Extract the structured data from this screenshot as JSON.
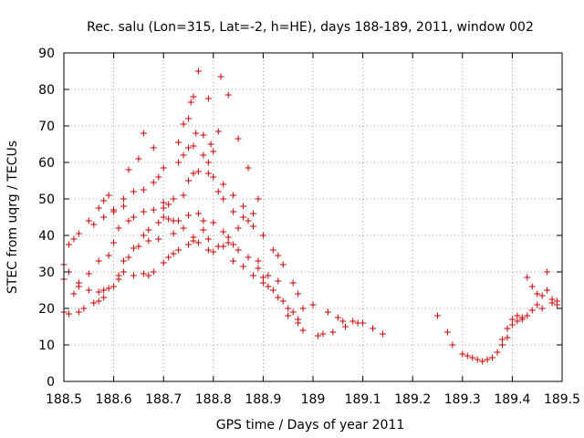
{
  "chart_data": {
    "type": "scatter",
    "title": "Rec. salu (Lon=315, Lat=-2, h=HE), days 188-189, 2011, window 002",
    "xlabel": "GPS time / Days of year 2011",
    "ylabel": "STEC from uqrg / TECUs",
    "xlim": [
      188.5,
      189.5
    ],
    "ylim": [
      0,
      90
    ],
    "xticks": [
      "188.5",
      "188.6",
      "188.7",
      "188.8",
      "188.9",
      "189",
      "189.1",
      "189.2",
      "189.3",
      "189.4",
      "189.5"
    ],
    "yticks": [
      "0",
      "10",
      "20",
      "30",
      "40",
      "50",
      "60",
      "70",
      "80",
      "90"
    ],
    "grid": true,
    "marker": "+",
    "color": "#cc0000",
    "points": [
      [
        188.5,
        32.0
      ],
      [
        188.51,
        37.5
      ],
      [
        188.52,
        39.0
      ],
      [
        188.53,
        40.5
      ],
      [
        188.55,
        44.0
      ],
      [
        188.57,
        47.5
      ],
      [
        188.58,
        49.5
      ],
      [
        188.59,
        51.0
      ],
      [
        188.6,
        47.0
      ],
      [
        188.62,
        50.0
      ],
      [
        188.64,
        52.0
      ],
      [
        188.66,
        52.5
      ],
      [
        188.68,
        54.5
      ],
      [
        188.69,
        56.0
      ],
      [
        188.7,
        58.5
      ],
      [
        188.73,
        60.0
      ],
      [
        188.74,
        62.0
      ],
      [
        188.75,
        64.0
      ],
      [
        188.76,
        64.5
      ],
      [
        188.78,
        62.0
      ],
      [
        188.79,
        60.0
      ],
      [
        188.8,
        56.0
      ],
      [
        188.82,
        54.0
      ],
      [
        188.84,
        51.0
      ],
      [
        188.86,
        48.0
      ],
      [
        188.88,
        46.0
      ],
      [
        188.89,
        50.0
      ],
      [
        188.9,
        40.0
      ],
      [
        188.92,
        36.0
      ],
      [
        188.93,
        34.5
      ],
      [
        188.94,
        32.0
      ],
      [
        188.96,
        27.0
      ],
      [
        188.97,
        24.0
      ],
      [
        188.98,
        20.0
      ],
      [
        188.5,
        28.0
      ],
      [
        188.51,
        30.0
      ],
      [
        188.53,
        27.0
      ],
      [
        188.55,
        29.5
      ],
      [
        188.57,
        33.0
      ],
      [
        188.59,
        34.5
      ],
      [
        188.6,
        38.0
      ],
      [
        188.61,
        42.0
      ],
      [
        188.63,
        44.0
      ],
      [
        188.64,
        45.0
      ],
      [
        188.66,
        46.5
      ],
      [
        188.68,
        47.0
      ],
      [
        188.7,
        47.5
      ],
      [
        188.71,
        48.5
      ],
      [
        188.72,
        50.0
      ],
      [
        188.74,
        51.0
      ],
      [
        188.75,
        55.0
      ],
      [
        188.76,
        57.0
      ],
      [
        188.77,
        57.5
      ],
      [
        188.79,
        57.0
      ],
      [
        188.81,
        52.0
      ],
      [
        188.82,
        50.0
      ],
      [
        188.84,
        46.5
      ],
      [
        188.86,
        45.0
      ],
      [
        188.88,
        42.5
      ],
      [
        188.89,
        33.0
      ],
      [
        188.91,
        29.0
      ],
      [
        188.93,
        27.5
      ],
      [
        188.95,
        20.0
      ],
      [
        188.97,
        17.0
      ],
      [
        188.5,
        19.0
      ],
      [
        188.52,
        24.0
      ],
      [
        188.53,
        26.0
      ],
      [
        188.55,
        25.0
      ],
      [
        188.57,
        24.5
      ],
      [
        188.58,
        23.0
      ],
      [
        188.6,
        26.0
      ],
      [
        188.61,
        29.0
      ],
      [
        188.62,
        33.0
      ],
      [
        188.63,
        34.0
      ],
      [
        188.65,
        37.0
      ],
      [
        188.66,
        40.0
      ],
      [
        188.67,
        41.5
      ],
      [
        188.69,
        43.5
      ],
      [
        188.7,
        45.0
      ],
      [
        188.71,
        44.5
      ],
      [
        188.73,
        44.0
      ],
      [
        188.75,
        45.5
      ],
      [
        188.77,
        46.0
      ],
      [
        188.78,
        44.0
      ],
      [
        188.8,
        43.5
      ],
      [
        188.82,
        41.0
      ],
      [
        188.84,
        37.5
      ],
      [
        188.85,
        36.0
      ],
      [
        188.87,
        34.0
      ],
      [
        188.89,
        31.0
      ],
      [
        188.9,
        27.0
      ],
      [
        188.92,
        25.0
      ],
      [
        188.94,
        22.0
      ],
      [
        188.96,
        19.0
      ],
      [
        188.51,
        18.5
      ],
      [
        188.53,
        19.0
      ],
      [
        188.54,
        20.0
      ],
      [
        188.56,
        21.5
      ],
      [
        188.57,
        22.0
      ],
      [
        188.58,
        25.0
      ],
      [
        188.59,
        25.5
      ],
      [
        188.61,
        28.0
      ],
      [
        188.62,
        30.0
      ],
      [
        188.64,
        29.0
      ],
      [
        188.66,
        29.5
      ],
      [
        188.67,
        29.0
      ],
      [
        188.68,
        30.0
      ],
      [
        188.7,
        32.5
      ],
      [
        188.71,
        34.0
      ],
      [
        188.72,
        35.0
      ],
      [
        188.73,
        36.0
      ],
      [
        188.75,
        37.5
      ],
      [
        188.76,
        38.5
      ],
      [
        188.77,
        38.0
      ],
      [
        188.79,
        36.0
      ],
      [
        188.8,
        35.5
      ],
      [
        188.82,
        37.0
      ],
      [
        188.83,
        38.0
      ],
      [
        188.84,
        33.0
      ],
      [
        188.86,
        31.5
      ],
      [
        188.88,
        29.0
      ],
      [
        188.9,
        28.5
      ],
      [
        188.91,
        26.0
      ],
      [
        188.93,
        23.0
      ],
      [
        188.95,
        18.0
      ],
      [
        188.97,
        16.0
      ],
      [
        188.98,
        14.0
      ],
      [
        188.56,
        43.0
      ],
      [
        188.58,
        45.0
      ],
      [
        188.6,
        46.5
      ],
      [
        188.62,
        48.0
      ],
      [
        188.63,
        58.0
      ],
      [
        188.65,
        61.0
      ],
      [
        188.66,
        68.0
      ],
      [
        188.68,
        64.0
      ],
      [
        188.7,
        49.0
      ],
      [
        188.72,
        44.0
      ],
      [
        188.73,
        65.5
      ],
      [
        188.74,
        70.5
      ],
      [
        188.75,
        72.0
      ],
      [
        188.755,
        76.5
      ],
      [
        188.76,
        78.0
      ],
      [
        188.765,
        68.0
      ],
      [
        188.77,
        85.0
      ],
      [
        188.78,
        67.5
      ],
      [
        188.79,
        77.5
      ],
      [
        188.795,
        65.0
      ],
      [
        188.8,
        63.0
      ],
      [
        188.81,
        68.5
      ],
      [
        188.815,
        83.5
      ],
      [
        188.83,
        78.5
      ],
      [
        188.85,
        66.5
      ],
      [
        188.87,
        58.5
      ],
      [
        188.64,
        36.5
      ],
      [
        188.67,
        38.5
      ],
      [
        188.69,
        39.0
      ],
      [
        188.72,
        40.5
      ],
      [
        188.74,
        42.0
      ],
      [
        188.76,
        39.5
      ],
      [
        188.78,
        41.5
      ],
      [
        188.79,
        39.0
      ],
      [
        188.81,
        37.0
      ],
      [
        188.83,
        39.5
      ],
      [
        188.85,
        42.0
      ],
      [
        188.87,
        44.0
      ],
      [
        189.0,
        21.0
      ],
      [
        189.01,
        12.5
      ],
      [
        189.02,
        13.0
      ],
      [
        189.03,
        19.0
      ],
      [
        189.04,
        13.5
      ],
      [
        189.05,
        17.5
      ],
      [
        189.06,
        16.5
      ],
      [
        189.065,
        15.0
      ],
      [
        189.08,
        16.5
      ],
      [
        189.1,
        16.0
      ],
      [
        189.12,
        14.5
      ],
      [
        189.14,
        13.0
      ],
      [
        189.09,
        16.0
      ],
      [
        189.25,
        18.0
      ],
      [
        189.27,
        13.5
      ],
      [
        189.28,
        10.0
      ],
      [
        189.3,
        7.5
      ],
      [
        189.31,
        7.0
      ],
      [
        189.32,
        6.5
      ],
      [
        189.33,
        6.0
      ],
      [
        189.34,
        5.5
      ],
      [
        189.35,
        6.0
      ],
      [
        189.36,
        6.5
      ],
      [
        189.37,
        8.0
      ],
      [
        189.38,
        10.0
      ],
      [
        189.39,
        12.0
      ],
      [
        189.4,
        15.5
      ],
      [
        189.41,
        16.5
      ],
      [
        189.42,
        17.0
      ],
      [
        189.43,
        18.0
      ],
      [
        189.44,
        19.5
      ],
      [
        189.45,
        21.0
      ],
      [
        189.46,
        23.5
      ],
      [
        189.47,
        25.0
      ],
      [
        189.48,
        21.5
      ],
      [
        189.49,
        21.0
      ],
      [
        189.38,
        11.5
      ],
      [
        189.39,
        14.5
      ],
      [
        189.4,
        17.0
      ],
      [
        189.41,
        18.0
      ],
      [
        189.42,
        17.5
      ],
      [
        189.43,
        28.5
      ],
      [
        189.44,
        26.0
      ],
      [
        189.45,
        24.0
      ],
      [
        189.46,
        20.0
      ],
      [
        189.47,
        30.0
      ],
      [
        189.48,
        22.5
      ],
      [
        189.49,
        22.0
      ]
    ]
  }
}
